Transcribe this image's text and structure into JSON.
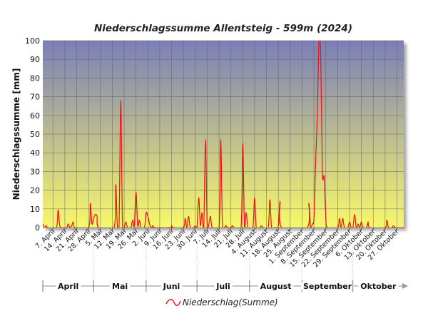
{
  "chart_data": {
    "type": "line",
    "title": "Niederschlagssumme Allentsteig - 599m (2024)",
    "ylabel": "Niederschlagssumme [mm]",
    "xlabel": "",
    "ylim": [
      0,
      100
    ],
    "y_ticks": [
      0,
      10,
      20,
      30,
      40,
      50,
      60,
      70,
      80,
      90,
      100
    ],
    "x_range": [
      "2024-04-01",
      "2024-10-31"
    ],
    "grid": true,
    "legend_position": "bottom-center",
    "background_gradient": [
      "#7b7fb8",
      "#f8f86a"
    ],
    "line_color": "#ee1111",
    "x_tick_labels": [
      {
        "date": "2024-04-07",
        "label": "7. April"
      },
      {
        "date": "2024-04-14",
        "label": "14. April"
      },
      {
        "date": "2024-04-21",
        "label": "21. April"
      },
      {
        "date": "2024-04-28",
        "label": "28. April"
      },
      {
        "date": "2024-05-05",
        "label": "5. Mai"
      },
      {
        "date": "2024-05-12",
        "label": "12. Mai"
      },
      {
        "date": "2024-05-19",
        "label": "19. Mai"
      },
      {
        "date": "2024-05-26",
        "label": "26. Mai"
      },
      {
        "date": "2024-06-02",
        "label": "2. Juni"
      },
      {
        "date": "2024-06-09",
        "label": "9. Juni"
      },
      {
        "date": "2024-06-16",
        "label": "16. Juni"
      },
      {
        "date": "2024-06-23",
        "label": "23. Juni"
      },
      {
        "date": "2024-06-30",
        "label": "30. Juni"
      },
      {
        "date": "2024-07-07",
        "label": "7. Juli"
      },
      {
        "date": "2024-07-14",
        "label": "14. Juli"
      },
      {
        "date": "2024-07-21",
        "label": "21. Juli"
      },
      {
        "date": "2024-07-28",
        "label": "28. Juli"
      },
      {
        "date": "2024-08-04",
        "label": "4. August"
      },
      {
        "date": "2024-08-11",
        "label": "11. August"
      },
      {
        "date": "2024-08-18",
        "label": "18. August"
      },
      {
        "date": "2024-08-25",
        "label": "25. August"
      },
      {
        "date": "2024-09-01",
        "label": "1. September"
      },
      {
        "date": "2024-09-08",
        "label": "8. September"
      },
      {
        "date": "2024-09-15",
        "label": "15. September"
      },
      {
        "date": "2024-09-22",
        "label": "22. September"
      },
      {
        "date": "2024-09-29",
        "label": "29. September"
      },
      {
        "date": "2024-10-06",
        "label": "6. Oktober"
      },
      {
        "date": "2024-10-13",
        "label": "13. Oktober"
      },
      {
        "date": "2024-10-20",
        "label": "20. Oktober"
      },
      {
        "date": "2024-10-27",
        "label": "27. Oktober"
      }
    ],
    "months": [
      {
        "label": "April",
        "start": "2024-04-01",
        "end": "2024-05-01"
      },
      {
        "label": "Mai",
        "start": "2024-05-01",
        "end": "2024-06-01"
      },
      {
        "label": "Juni",
        "start": "2024-06-01",
        "end": "2024-07-01"
      },
      {
        "label": "Juli",
        "start": "2024-07-01",
        "end": "2024-08-01"
      },
      {
        "label": "August",
        "start": "2024-08-01",
        "end": "2024-09-01"
      },
      {
        "label": "September",
        "start": "2024-09-01",
        "end": "2024-10-01"
      },
      {
        "label": "Oktober",
        "start": "2024-10-01",
        "end": "2024-11-01"
      }
    ],
    "series": [
      {
        "name": "Niederschlag(Summe)",
        "points": [
          [
            "2024-04-01",
            2
          ],
          [
            "2024-04-02",
            0
          ],
          [
            "2024-04-03",
            1
          ],
          [
            "2024-04-04",
            0
          ],
          [
            "2024-04-09",
            0
          ],
          [
            "2024-04-10",
            9.5
          ],
          [
            "2024-04-11",
            1
          ],
          [
            "2024-04-12",
            0
          ],
          [
            "2024-04-15",
            0
          ],
          [
            "2024-04-16",
            2
          ],
          [
            "2024-04-17",
            0
          ],
          [
            "2024-04-18",
            1
          ],
          [
            "2024-04-19",
            3
          ],
          [
            "2024-04-20",
            0
          ],
          [
            "2024-04-28",
            0
          ],
          [
            "2024-04-29",
            13
          ],
          [
            "2024-04-30",
            2
          ],
          [
            "2024-05-01",
            5
          ],
          [
            "2024-05-02",
            7
          ],
          [
            "2024-05-03",
            6
          ],
          [
            "2024-05-04",
            0
          ],
          [
            "2024-05-13",
            0
          ],
          [
            "2024-05-14",
            23
          ],
          [
            "2024-05-15",
            1
          ],
          [
            "2024-05-16",
            0
          ],
          [
            "2024-05-17",
            68
          ],
          [
            "2024-05-18",
            1
          ],
          [
            "2024-05-19",
            0
          ],
          [
            "2024-05-20",
            3
          ],
          [
            "2024-05-21",
            0
          ],
          [
            "2024-05-23",
            0
          ],
          [
            "2024-05-24",
            4
          ],
          [
            "2024-05-25",
            1
          ],
          [
            "2024-05-26",
            19
          ],
          [
            "2024-05-27",
            1
          ],
          [
            "2024-05-28",
            4
          ],
          [
            "2024-05-29",
            0
          ],
          [
            "2024-05-31",
            0
          ],
          [
            "2024-06-01",
            8
          ],
          [
            "2024-06-02",
            6
          ],
          [
            "2024-06-03",
            2
          ],
          [
            "2024-06-04",
            0
          ],
          [
            "2024-06-05",
            1
          ],
          [
            "2024-06-06",
            0
          ],
          [
            "2024-06-15",
            0
          ],
          [
            "2024-06-16",
            1
          ],
          [
            "2024-06-17",
            0
          ],
          [
            "2024-06-23",
            0
          ],
          [
            "2024-06-24",
            5
          ],
          [
            "2024-06-25",
            0
          ],
          [
            "2024-06-26",
            6
          ],
          [
            "2024-06-27",
            0
          ],
          [
            "2024-06-29",
            0
          ],
          [
            "2024-06-30",
            1
          ],
          [
            "2024-07-01",
            0
          ],
          [
            "2024-07-02",
            16
          ],
          [
            "2024-07-03",
            1
          ],
          [
            "2024-07-04",
            8
          ],
          [
            "2024-07-05",
            0
          ],
          [
            "2024-07-06",
            47
          ],
          [
            "2024-07-07",
            1
          ],
          [
            "2024-07-08",
            2
          ],
          [
            "2024-07-09",
            6
          ],
          [
            "2024-07-10",
            0
          ],
          [
            "2024-07-14",
            0
          ],
          [
            "2024-07-15",
            47
          ],
          [
            "2024-07-16",
            1
          ],
          [
            "2024-07-17",
            0
          ],
          [
            "2024-07-18",
            1
          ],
          [
            "2024-07-19",
            0
          ],
          [
            "2024-07-21",
            0
          ],
          [
            "2024-07-22",
            1
          ],
          [
            "2024-07-23",
            0
          ],
          [
            "2024-07-27",
            0
          ],
          [
            "2024-07-28",
            45
          ],
          [
            "2024-07-29",
            1
          ],
          [
            "2024-07-30",
            8
          ],
          [
            "2024-07-31",
            0
          ],
          [
            "2024-08-01",
            0
          ],
          [
            "2024-08-03",
            0
          ],
          [
            "2024-08-04",
            16
          ],
          [
            "2024-08-05",
            0
          ],
          [
            "2024-08-07",
            0
          ],
          [
            "2024-08-08",
            1
          ],
          [
            "2024-08-09",
            0
          ],
          [
            "2024-08-12",
            0
          ],
          [
            "2024-08-13",
            15
          ],
          [
            "2024-08-14",
            0
          ],
          [
            "2024-08-16",
            0
          ],
          [
            "2024-08-17",
            0
          ],
          [
            "2024-08-18",
            1
          ],
          [
            "2024-08-19",
            14
          ],
          [
            "2024-08-20",
            0
          ],
          [
            "2024-09-04",
            0
          ],
          [
            "2024-09-05",
            13
          ],
          [
            "2024-09-06",
            0
          ],
          [
            "2024-09-07",
            2
          ],
          [
            "2024-09-08",
            5
          ],
          [
            "2024-09-09",
            35
          ],
          [
            "2024-09-10",
            60
          ],
          [
            "2024-09-11",
            100
          ],
          [
            "2024-09-12",
            92
          ],
          [
            "2024-09-13",
            30
          ],
          [
            "2024-09-14",
            27
          ],
          [
            "2024-09-15",
            6
          ],
          [
            "2024-09-16",
            0
          ],
          [
            "2024-09-22",
            0
          ],
          [
            "2024-09-23",
            5
          ],
          [
            "2024-09-24",
            0
          ],
          [
            "2024-09-25",
            5
          ],
          [
            "2024-09-26",
            0
          ],
          [
            "2024-09-28",
            0
          ],
          [
            "2024-09-29",
            3
          ],
          [
            "2024-09-30",
            0
          ],
          [
            "2024-10-01",
            0
          ],
          [
            "2024-10-02",
            7
          ],
          [
            "2024-10-03",
            0
          ],
          [
            "2024-10-04",
            2
          ],
          [
            "2024-10-05",
            0
          ],
          [
            "2024-10-06",
            3
          ],
          [
            "2024-10-07",
            0
          ],
          [
            "2024-10-09",
            0
          ],
          [
            "2024-10-10",
            3
          ],
          [
            "2024-10-11",
            0
          ],
          [
            "2024-10-20",
            0
          ],
          [
            "2024-10-21",
            4
          ],
          [
            "2024-10-22",
            0
          ],
          [
            "2024-10-24",
            0
          ],
          [
            "2024-10-25",
            1
          ],
          [
            "2024-10-26",
            0
          ],
          [
            "2024-10-31",
            0
          ]
        ]
      }
    ]
  }
}
